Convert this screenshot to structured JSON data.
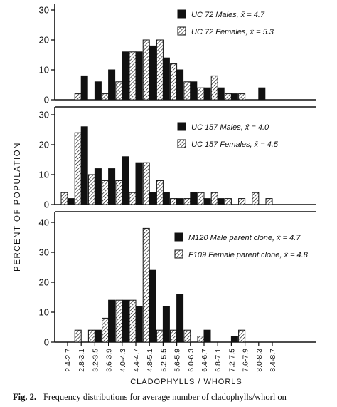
{
  "caption": {
    "label": "Fig. 2.",
    "text": "Frequency distributions for average number of cladophylls/whorl on"
  },
  "chart_data": [
    {
      "type": "bar",
      "categories": [
        "2.4-2.7",
        "2.8-3.1",
        "3.2-3.5",
        "3.6-3.9",
        "4.0-4.3",
        "4.4-4.7",
        "4.8-5.1",
        "5.2-5.5",
        "5.6-5.9",
        "6.0-6.3",
        "6.4-6.7",
        "6.8-7.1",
        "7.2-7.5",
        "7.6-7.9",
        "8.0-8.3",
        "8.4-8.7"
      ],
      "series": [
        {
          "name": "UC 72 Males, x̄ = 4.7",
          "pattern": "solid",
          "values": [
            null,
            8,
            6,
            10,
            16,
            16,
            18,
            14,
            10,
            6,
            4,
            4,
            2,
            null,
            4,
            null
          ]
        },
        {
          "name": "UC 72 Females, x̄ = 5.3",
          "pattern": "hatched",
          "values": [
            null,
            2,
            null,
            2,
            6,
            16,
            20,
            20,
            12,
            6,
            4,
            8,
            2,
            2,
            null,
            null
          ]
        }
      ],
      "ylim": [
        0,
        30
      ],
      "yticks": [
        "0",
        "10",
        "20",
        "30"
      ]
    },
    {
      "type": "bar",
      "categories": [
        "2.4-2.7",
        "2.8-3.1",
        "3.2-3.5",
        "3.6-3.9",
        "4.0-4.3",
        "4.4-4.7",
        "4.8-5.1",
        "5.2-5.5",
        "5.6-5.9",
        "6.0-6.3",
        "6.4-6.7",
        "6.8-7.1",
        "7.2-7.5",
        "7.6-7.9",
        "8.0-8.3",
        "8.4-8.7"
      ],
      "series": [
        {
          "name": "UC 157 Males, x̄ = 4.0",
          "pattern": "solid",
          "values": [
            2,
            26,
            12,
            12,
            16,
            14,
            4,
            4,
            2,
            4,
            2,
            2,
            null,
            null,
            null,
            null
          ]
        },
        {
          "name": "UC 157 Females, x̄ = 4.5",
          "pattern": "hatched",
          "values": [
            4,
            24,
            10,
            8,
            8,
            4,
            14,
            8,
            2,
            2,
            4,
            4,
            2,
            2,
            4,
            2
          ]
        }
      ],
      "ylim": [
        0,
        30
      ],
      "yticks": [
        "0",
        "10",
        "20",
        "30"
      ]
    },
    {
      "type": "bar",
      "categories": [
        "2.4-2.7",
        "2.8-3.1",
        "3.2-3.5",
        "3.6-3.9",
        "4.0-4.3",
        "4.4-4.7",
        "4.8-5.1",
        "5.2-5.5",
        "5.6-5.9",
        "6.0-6.3",
        "6.4-6.7",
        "6.8-7.1",
        "7.2-7.5",
        "7.6-7.9",
        "8.0-8.3",
        "8.4-8.7"
      ],
      "series": [
        {
          "name": "M120 Male parent clone, x̄ = 4.7",
          "pattern": "solid",
          "values": [
            null,
            null,
            4,
            14,
            14,
            12,
            24,
            12,
            16,
            null,
            4,
            null,
            2,
            null,
            null,
            null
          ]
        },
        {
          "name": "F109 Female parent clone, x̄ = 4.8",
          "pattern": "hatched",
          "values": [
            null,
            4,
            4,
            8,
            14,
            14,
            38,
            4,
            4,
            4,
            2,
            null,
            null,
            4,
            null,
            null
          ]
        }
      ],
      "ylim": [
        0,
        40
      ],
      "yticks": [
        "0",
        "10",
        "20",
        "30",
        "40"
      ]
    }
  ],
  "axes": {
    "ylabel": "PERCENT OF POPULATION",
    "xlabel": "CLADOPHYLLS / WHORLS"
  }
}
